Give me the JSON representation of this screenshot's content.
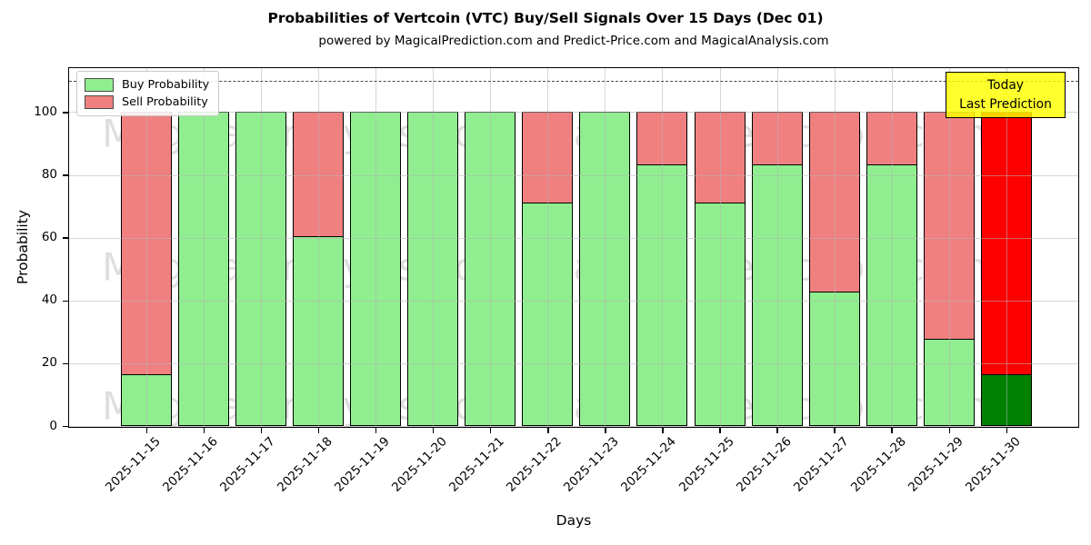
{
  "figure": {
    "title": "Probabilities of Vertcoin (VTC) Buy/Sell Signals Over 15 Days (Dec 01)",
    "subtitle": "powered by MagicalPrediction.com and Predict-Price.com and MagicalAnalysis.com"
  },
  "chart_data": {
    "type": "bar",
    "stacked": true,
    "title": "powered by MagicalPrediction.com and Predict-Price.com and MagicalAnalysis.com",
    "xlabel": "Days",
    "ylabel": "Probability",
    "ylim": [
      0,
      114
    ],
    "yticks": [
      0,
      20,
      40,
      60,
      80,
      100
    ],
    "grid": true,
    "dashed_line_y": 110,
    "legend_position": "upper left",
    "categories": [
      "2025-11-15",
      "2025-11-16",
      "2025-11-17",
      "2025-11-18",
      "2025-11-19",
      "2025-11-20",
      "2025-11-21",
      "2025-11-22",
      "2025-11-23",
      "2025-11-24",
      "2025-11-25",
      "2025-11-26",
      "2025-11-27",
      "2025-11-28",
      "2025-11-29",
      "2025-11-30"
    ],
    "series": [
      {
        "name": "Buy Probability",
        "color": "#90ee90",
        "values": [
          16.67,
          100,
          100,
          60.5,
          100,
          100,
          100,
          71.43,
          100,
          83.33,
          71.43,
          83.33,
          42.86,
          83.33,
          27.78,
          16.67
        ]
      },
      {
        "name": "Sell Probability",
        "color": "#f08080",
        "values": [
          83.33,
          0,
          0,
          39.5,
          0,
          0,
          0,
          28.57,
          0,
          16.67,
          28.57,
          16.67,
          57.14,
          16.67,
          72.22,
          83.33
        ]
      }
    ],
    "today_bar": {
      "index": 15,
      "buy_color": "#008000",
      "sell_color": "#ff0000"
    },
    "annotation": {
      "lines": [
        "Today",
        "Last Prediction"
      ],
      "bg_color": "#ffff00"
    },
    "watermarks": [
      "MagicalAnalysis.com",
      "MagicalPrediction.com"
    ],
    "colors": {
      "edge": "#000000",
      "grid": "#b2b2b2",
      "dashed_line": "#4a4a4a"
    }
  }
}
